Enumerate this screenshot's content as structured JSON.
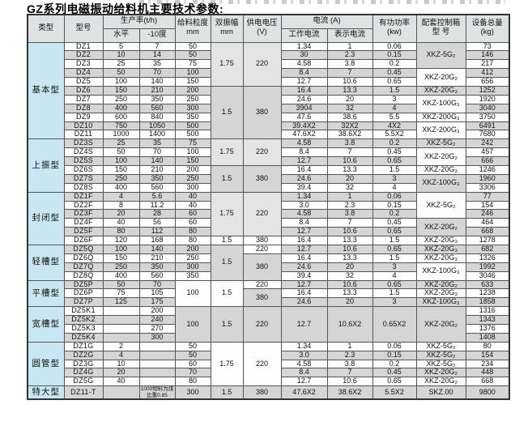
{
  "title": "GZ系列电磁振动给料机主要技术参数:",
  "table": {
    "header": {
      "row1": [
        {
          "t": "类型",
          "rs": 2
        },
        {
          "t": "型号",
          "rs": 2
        },
        {
          "t": "生产率(t/h)",
          "cs": 2
        },
        {
          "t": "给料粒度\nmm",
          "rs": 2
        },
        {
          "t": "双振幅\nmm",
          "rs": 2
        },
        {
          "t": "供电电压\n(V)",
          "rs": 2
        },
        {
          "t": "电流 (A)",
          "cs": 2
        },
        {
          "t": "有功功率\n(kw)",
          "rs": 2
        },
        {
          "t": "配套控制箱\n型 号",
          "rs": 2
        },
        {
          "t": "设备总量\n(kg)",
          "rs": 2
        }
      ],
      "row2": [
        "水平",
        "-10度",
        "工作电流",
        "表示电流"
      ]
    },
    "groups": [
      {
        "type": "基本型",
        "rows": [
          [
            "DZ1",
            "5",
            "7",
            "50",
            {
              "t": "1.75",
              "rs": 5,
              "bg": "l"
            },
            {
              "t": "220",
              "rs": 5,
              "bg": "l"
            },
            "1.34",
            "1",
            "0.06",
            {
              "t": "XKZ-5G₂",
              "rs": 3,
              "bg": "g"
            },
            "73"
          ],
          [
            "DZ2",
            "10",
            "14",
            "50",
            "30",
            "2.3",
            "0.15",
            "146"
          ],
          [
            "DZ3",
            "25",
            "35",
            "75",
            "4.58",
            "3.8",
            "0.2",
            "217"
          ],
          [
            "DZ4",
            "50",
            "70",
            "100",
            "8.4",
            "7",
            "0.45",
            {
              "t": "XKZ-20G₂",
              "rs": 2,
              "bg": "w"
            },
            "412"
          ],
          [
            "DZ5",
            "100",
            "140",
            "150",
            "12.7",
            "10.6",
            "0.65",
            "656"
          ],
          [
            "DZ6",
            "150",
            "210",
            "200",
            {
              "t": "1.5",
              "rs": 6,
              "bg": "g"
            },
            {
              "t": "380",
              "rs": 6,
              "bg": "g"
            },
            "16.4",
            "13.3",
            "1.5",
            {
              "t": "XKZ-20G₃",
              "bg": "g"
            },
            "1252"
          ],
          [
            "DZ7",
            "250",
            "350",
            "250",
            "24.6",
            "20",
            "3",
            {
              "t": "XKZ-100G₃",
              "rs": 2,
              "bg": "w"
            },
            "1920"
          ],
          [
            "DZ8",
            "400",
            "560",
            "300",
            "3904",
            "32",
            "4",
            "3040"
          ],
          [
            "DZ9",
            "600",
            "840",
            "350",
            "47.6",
            "38.6",
            "5.5",
            {
              "t": "XKZ-200G₃",
              "bg": "w"
            },
            "3750"
          ],
          [
            "DZ10",
            "750",
            "1050",
            "500",
            "39.4X2",
            "32X2",
            "4X2",
            {
              "t": "XKZ-200G₃",
              "rs": 2,
              "bg": "w"
            },
            "6491"
          ],
          [
            "DZ11",
            "1000",
            "1400",
            "500",
            "47.6X2",
            "38.6X2",
            "5.5X2",
            "7680"
          ]
        ]
      },
      {
        "type": "上振型",
        "rows": [
          [
            "DZ3S",
            "25",
            "35",
            "75",
            {
              "t": "1.75",
              "rs": 3,
              "bg": "l"
            },
            {
              "t": "220",
              "rs": 3,
              "bg": "l"
            },
            "4.58",
            "3.8",
            "0.2",
            {
              "t": "XKZ-5G₂",
              "bg": "g"
            },
            "242"
          ],
          [
            "DZ4S",
            "50",
            "70",
            "100",
            "8.4",
            "7",
            "0.45",
            {
              "t": "XKZ-20G₂",
              "rs": 2,
              "bg": "w"
            },
            "457"
          ],
          [
            "DZ5S",
            "100",
            "140",
            "150",
            "12.7",
            "10.6",
            "0.65",
            "666"
          ],
          [
            "DZ6S",
            "150",
            "210",
            "200",
            {
              "t": "1.5",
              "rs": 3,
              "bg": "g"
            },
            {
              "t": "380",
              "rs": 3,
              "bg": "g"
            },
            "16.4",
            "13.3",
            "1.5",
            {
              "t": "XKZ-20G₃",
              "bg": "w"
            },
            "1246"
          ],
          [
            "DZ7S",
            "250",
            "350",
            "250",
            "24.6",
            "20",
            "3",
            {
              "t": "XKZ-100G₃",
              "rs": 2,
              "bg": "g"
            },
            "1960"
          ],
          [
            "DZ8S",
            "400",
            "560",
            "300",
            "39.4",
            "32",
            "4",
            "3306"
          ]
        ]
      },
      {
        "type": "封闭型",
        "rows": [
          [
            "DZ1F",
            "4",
            "5.6",
            "40",
            {
              "t": "1.75",
              "rs": 5,
              "bg": "l"
            },
            {
              "t": "220",
              "rs": 5,
              "bg": "l"
            },
            "1.34",
            "1",
            "0.06",
            {
              "t": "XKZ-5G₂",
              "rs": 3,
              "bg": "w"
            },
            "77"
          ],
          [
            "DZ2F",
            "8",
            "11.2",
            "40",
            "3.0",
            "2.3",
            "0.15",
            "154"
          ],
          [
            "DZ3F",
            "20",
            "28",
            "60",
            "4.58",
            "3.8",
            "0.2",
            "246"
          ],
          [
            "DZ4F",
            "40",
            "56",
            "60",
            "8.4",
            "7",
            "0.45",
            {
              "t": "XKZ-20G₂",
              "rs": 2,
              "bg": "g"
            },
            "464"
          ],
          [
            "DZ5F",
            "80",
            "112",
            "80",
            "12.7",
            "10.6",
            "0.65",
            "668"
          ],
          [
            "DZ6F",
            "120",
            "168",
            "80",
            "1.5",
            "380",
            "16.4",
            "13.3",
            "1.5",
            "XKZ-20G₃",
            "1278"
          ]
        ]
      },
      {
        "type": "轻槽型",
        "rows": [
          [
            "DZ5Q",
            "100",
            "140",
            "200",
            {
              "t": "1.5",
              "rs": 4,
              "bg": "g"
            },
            {
              "t": "220",
              "bg": "w"
            },
            "12.7",
            "10.6",
            "0.65",
            "XKZ-20G₃",
            "682"
          ],
          [
            "DZ6Q",
            "150",
            "210",
            "250",
            {
              "t": "380",
              "rs": 3,
              "bg": "g"
            },
            "16.4",
            "13.3",
            "1.5",
            "XKZ-20G₃",
            "1326"
          ],
          [
            "DZ7Q",
            "250",
            "350",
            "300",
            "24.6",
            "20",
            "3",
            {
              "t": "XKZ-100G₃",
              "rs": 2,
              "bg": "w"
            },
            "1992"
          ],
          [
            "DZ8Q",
            "400",
            "560",
            "350",
            "39.4",
            "32",
            "4",
            "3046"
          ]
        ]
      },
      {
        "type": "平槽型",
        "rows": [
          [
            "DZ5P",
            "50",
            "70",
            {
              "t": "100",
              "rs": 3,
              "bg": "w"
            },
            {
              "t": "1.5",
              "rs": 3,
              "bg": "w"
            },
            {
              "t": "220",
              "bg": "w"
            },
            "12.7",
            "10.6",
            "0.65",
            "XKZ-20G₂",
            "633"
          ],
          [
            "DZ6P",
            "75",
            "105",
            {
              "t": "380",
              "rs": 2,
              "bg": "g"
            },
            "16.4",
            "13.3",
            "1.5",
            "XKZ-20G₃",
            "1238"
          ],
          [
            "DZ7P",
            "125",
            "175",
            "24.6",
            "20",
            "3",
            "XKZ-100G₃",
            "1858"
          ]
        ]
      },
      {
        "type": "宽槽型",
        "rows": [
          [
            "DZ5K1",
            "",
            "200",
            {
              "t": "100",
              "rs": 4,
              "bg": "g"
            },
            {
              "t": "1.5",
              "rs": 4,
              "bg": "g"
            },
            {
              "t": "220",
              "rs": 4,
              "bg": "g"
            },
            {
              "t": "12.7",
              "rs": 4,
              "bg": "g"
            },
            {
              "t": "10.6X2",
              "rs": 4,
              "bg": "g"
            },
            {
              "t": "0.65X2",
              "rs": 4,
              "bg": "g"
            },
            {
              "t": "XKZ-20G₂",
              "rs": 4,
              "bg": "g"
            },
            "1316"
          ],
          [
            "DZ5K2",
            "",
            "240",
            "1343"
          ],
          [
            "DZ5K3",
            "",
            "270",
            "1376"
          ],
          [
            "DZ5K4",
            "",
            "300",
            "1408"
          ]
        ]
      },
      {
        "type": "圆管型",
        "rows": [
          [
            "DZ1G",
            "2",
            "",
            "50",
            {
              "t": "1.75",
              "rs": 5,
              "bg": "w"
            },
            {
              "t": "220",
              "rs": 5,
              "bg": "w"
            },
            "1.34",
            "1",
            "0.06",
            "XKZ-5G₂",
            "80"
          ],
          [
            "DZ2G",
            "4",
            "",
            "50",
            "3.0",
            "2.3",
            "0.15",
            "XKZ-5G₂",
            "154"
          ],
          [
            "DZ3G",
            "10",
            "",
            "60",
            "4.58",
            "3.8",
            "0.2",
            "XKZ-5G₂",
            "234"
          ],
          [
            "DZ4G",
            "20",
            "",
            "70",
            "8.4",
            "7",
            "0.45",
            "XKZ-20G₂",
            "448"
          ],
          [
            "DZ5G",
            "40",
            "",
            "80",
            "12.7",
            "10.6",
            "0.65",
            "XKZ-20G₂",
            "668"
          ]
        ]
      },
      {
        "type": "特大型",
        "rows": [
          [
            "DZ11-T",
            "",
            {
              "t": "1000物料为煤比重0.85",
              "sm": 1
            },
            "300",
            "1.5",
            "380",
            "47.6X2",
            "38.6X2",
            "5.5X2",
            "SKZ.00",
            "9800"
          ]
        ]
      }
    ]
  }
}
